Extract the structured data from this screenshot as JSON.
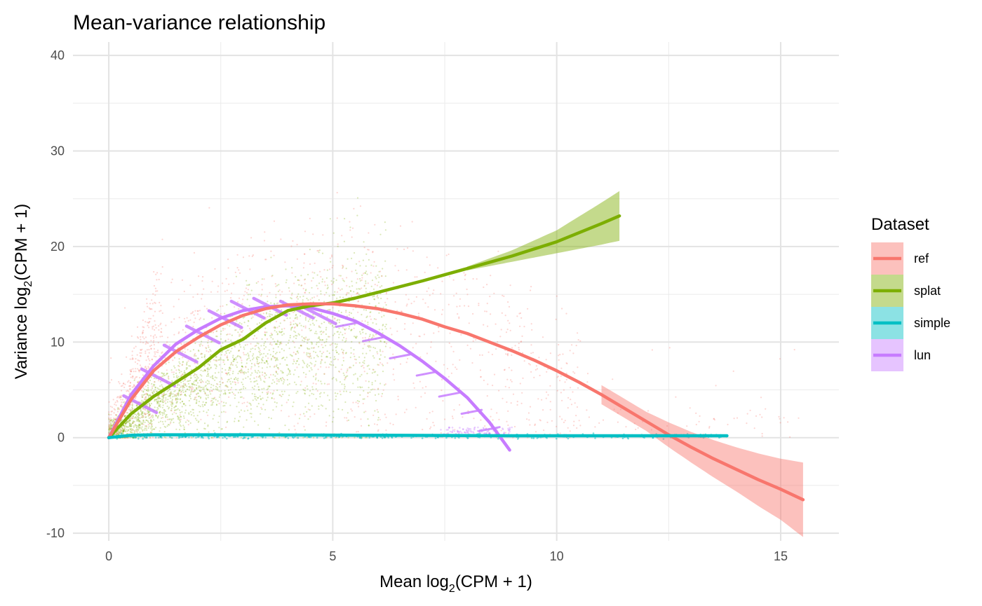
{
  "chart_data": {
    "type": "scatter",
    "title": "Mean-variance relationship",
    "xlabel_main": "Mean log",
    "xlabel_sub": "2",
    "xlabel_rest": "(CPM + 1)",
    "ylabel_main": "Variance log",
    "ylabel_sub": "2",
    "ylabel_rest": "(CPM + 1)",
    "xlim": [
      -0.8,
      16.3
    ],
    "ylim": [
      -10.8,
      41.4
    ],
    "x_ticks": [
      0,
      5,
      10,
      15
    ],
    "x_tick_labels": [
      "0",
      "5",
      "10",
      "15"
    ],
    "x_minor_ticks": [
      2.5,
      7.5,
      12.5
    ],
    "y_ticks": [
      -10,
      0,
      10,
      20,
      30,
      40
    ],
    "y_tick_labels": [
      "-10",
      "0",
      "10",
      "20",
      "30",
      "40"
    ],
    "y_minor_ticks": [
      -5,
      5,
      15,
      25,
      35
    ],
    "grid": true,
    "legend": {
      "title": "Dataset",
      "position": "right",
      "entries": [
        {
          "label": "ref",
          "color": "#F8766D"
        },
        {
          "label": "splat",
          "color": "#7CAE00"
        },
        {
          "label": "simple",
          "color": "#00BFC4"
        },
        {
          "label": "lun",
          "color": "#C77CFF"
        }
      ]
    },
    "series": [
      {
        "name": "ref",
        "color": "#F8766D",
        "fit": [
          [
            0,
            0
          ],
          [
            0.5,
            4
          ],
          [
            1,
            7
          ],
          [
            1.5,
            9
          ],
          [
            2,
            10.5
          ],
          [
            2.5,
            11.8
          ],
          [
            3,
            12.8
          ],
          [
            3.5,
            13.5
          ],
          [
            4,
            13.9
          ],
          [
            4.5,
            14
          ],
          [
            5,
            14
          ],
          [
            5.5,
            13.8
          ],
          [
            6,
            13.5
          ],
          [
            6.5,
            13
          ],
          [
            7,
            12.4
          ],
          [
            7.5,
            11.6
          ],
          [
            8,
            10.9
          ],
          [
            8.5,
            10
          ],
          [
            9,
            9.1
          ],
          [
            9.5,
            8.1
          ],
          [
            10,
            7
          ],
          [
            10.5,
            5.8
          ],
          [
            11,
            4.5
          ],
          [
            11.5,
            3.1
          ],
          [
            12,
            1.7
          ],
          [
            12.5,
            0.3
          ],
          [
            13,
            -1
          ],
          [
            13.5,
            -2.2
          ],
          [
            14,
            -3.3
          ],
          [
            14.5,
            -4.4
          ],
          [
            15,
            -5.4
          ],
          [
            15.5,
            -6.5
          ]
        ],
        "band": [
          [
            11,
            1.0
          ],
          [
            12,
            1.0
          ],
          [
            13,
            1.6
          ],
          [
            14,
            2.3
          ],
          [
            15,
            3.2
          ],
          [
            15.5,
            3.9
          ]
        ]
      },
      {
        "name": "splat",
        "color": "#7CAE00",
        "fit": [
          [
            0,
            0
          ],
          [
            0.5,
            2.5
          ],
          [
            1,
            4.3
          ],
          [
            1.5,
            5.8
          ],
          [
            2,
            7.3
          ],
          [
            2.5,
            9.2
          ],
          [
            3,
            10.3
          ],
          [
            3.5,
            12
          ],
          [
            4,
            13.3
          ],
          [
            4.5,
            13.8
          ],
          [
            5,
            14.1
          ],
          [
            5.5,
            14.6
          ],
          [
            6,
            15.2
          ],
          [
            7,
            16.4
          ],
          [
            8,
            17.7
          ],
          [
            9,
            19
          ],
          [
            10,
            20.5
          ],
          [
            11,
            22.4
          ],
          [
            11.4,
            23.2
          ]
        ],
        "band": [
          [
            8,
            0.2
          ],
          [
            9,
            0.6
          ],
          [
            10,
            1.2
          ],
          [
            11,
            2.2
          ],
          [
            11.4,
            2.6
          ]
        ]
      },
      {
        "name": "simple",
        "color": "#00BFC4",
        "fit": [
          [
            0,
            0
          ],
          [
            0.5,
            0.25
          ],
          [
            1,
            0.3
          ],
          [
            3,
            0.3
          ],
          [
            6,
            0.25
          ],
          [
            9,
            0.2
          ],
          [
            12,
            0.2
          ],
          [
            13.8,
            0.2
          ]
        ]
      },
      {
        "name": "lun",
        "color": "#C77CFF",
        "fit": [
          [
            0,
            0
          ],
          [
            0.5,
            4.5
          ],
          [
            1,
            7.5
          ],
          [
            1.5,
            9.8
          ],
          [
            2,
            11.3
          ],
          [
            2.5,
            12.5
          ],
          [
            3,
            13.3
          ],
          [
            3.5,
            13.7
          ],
          [
            4,
            13.8
          ],
          [
            4.5,
            13.6
          ],
          [
            5,
            13
          ],
          [
            5.5,
            12.2
          ],
          [
            6,
            11
          ],
          [
            6.5,
            9.6
          ],
          [
            7,
            8
          ],
          [
            7.5,
            6.2
          ],
          [
            8,
            4.2
          ],
          [
            8.5,
            1.6
          ],
          [
            8.95,
            -1.3
          ]
        ]
      }
    ],
    "lun_streaks": [
      [
        0.7,
        3.5
      ],
      [
        1.1,
        6.3
      ],
      [
        1.6,
        8.8
      ],
      [
        2.1,
        10.8
      ],
      [
        2.6,
        12.4
      ],
      [
        3.1,
        13.4
      ],
      [
        3.6,
        13.7
      ],
      [
        4.2,
        13.4
      ],
      [
        4.7,
        12.8
      ],
      [
        5.3,
        11.8
      ],
      [
        5.9,
        10.3
      ],
      [
        6.5,
        8.5
      ],
      [
        7.1,
        6.7
      ],
      [
        7.6,
        4.5
      ],
      [
        8.1,
        2.7
      ],
      [
        8.5,
        0.9
      ]
    ]
  }
}
